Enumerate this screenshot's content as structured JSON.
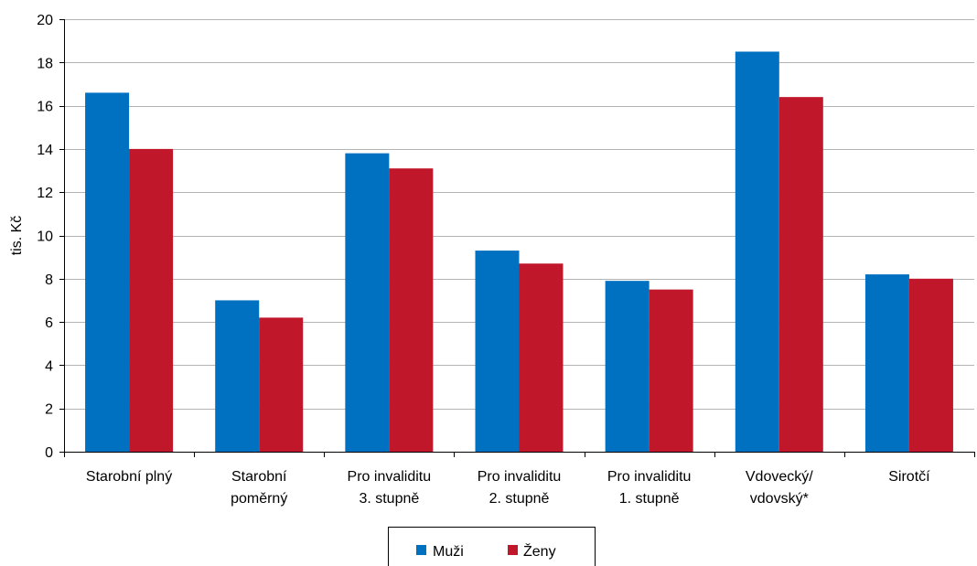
{
  "chart_data": {
    "type": "bar",
    "categories": [
      [
        "Starobní plný"
      ],
      [
        "Starobní",
        "poměrný"
      ],
      [
        "Pro invaliditu",
        "3. stupně"
      ],
      [
        "Pro invaliditu",
        "2. stupně"
      ],
      [
        "Pro invaliditu",
        "1. stupně"
      ],
      [
        "Vdovecký/",
        "vdovský*"
      ],
      [
        "Sirotčí"
      ]
    ],
    "series": [
      {
        "name": "Muži",
        "color": "#0070C0",
        "values": [
          16.6,
          7.0,
          13.8,
          9.3,
          7.9,
          18.5,
          8.2
        ]
      },
      {
        "name": "Ženy",
        "color": "#C0172B",
        "values": [
          14.0,
          6.2,
          13.1,
          8.7,
          7.5,
          16.4,
          8.0
        ]
      }
    ],
    "ylabel": "tis. Kč",
    "ylim": [
      0,
      20
    ],
    "yticks": [
      "0",
      "2",
      "4",
      "6",
      "8",
      "10",
      "12",
      "14",
      "16",
      "18",
      "20"
    ],
    "grid": true,
    "legend_position": "bottom"
  }
}
